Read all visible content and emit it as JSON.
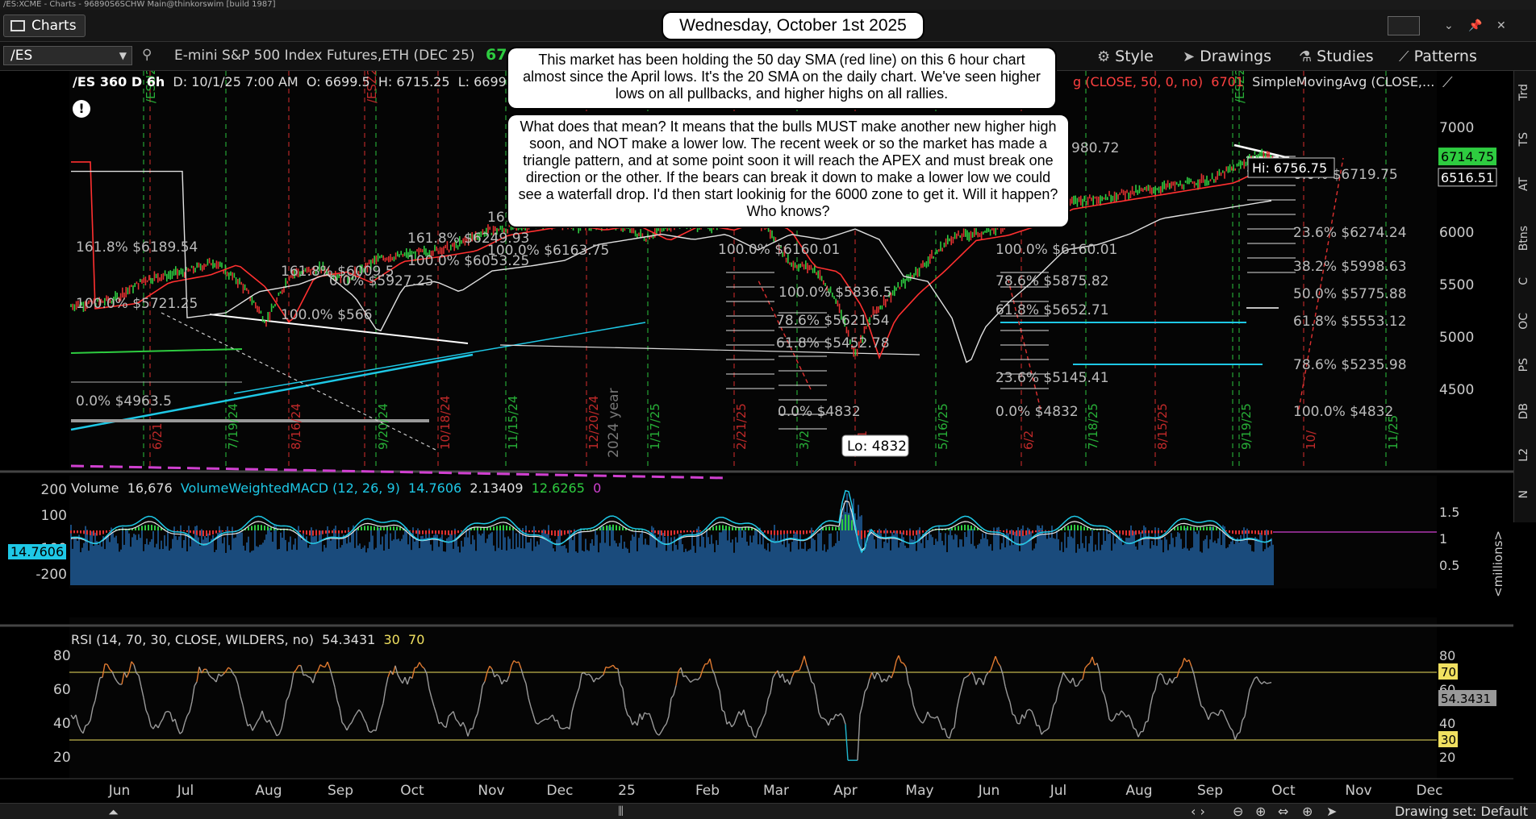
{
  "window": {
    "title": "/ES:XCME - Charts - 96890S6SCHW Main@thinkorswim [build 1987]",
    "tab_label": "Charts"
  },
  "toolbar": {
    "symbol": "/ES",
    "instrument": "E-mini S&P 500 Index Futures,ETH (DEC 25)",
    "last_price_fragment": "67",
    "style_label": "Style",
    "drawings_label": "Drawings",
    "studies_label": "Studies",
    "patterns_label": "Patterns"
  },
  "price_pane": {
    "status": {
      "symbol": "/ES 360 D 6h",
      "date": "D: 10/1/25 7:00 AM",
      "open": "O: 6699.5",
      "high": "H: 6715.25",
      "low": "L: 6699..",
      "sma50": "g (CLOSE, 50, 0, no)",
      "sma50_value": "6701",
      "sma_other": "SimpleMovingAvg (CLOSE,..."
    },
    "y_axis": [
      "7000",
      "6500",
      "6000",
      "5500",
      "5000",
      "4500"
    ],
    "current_price_tag": "6714.75",
    "second_price_tag": "6516.51",
    "hi_label": "Hi: 6756.75",
    "lo_label": "Lo: 4832",
    "year_label": "2024 year",
    "fib_labels": [
      {
        "text": "161.8%  $6189.54"
      },
      {
        "text": "100.0%  $5721.25"
      },
      {
        "text": "0.0%  $4963.5"
      },
      {
        "text": "161.8%  $6009.5"
      },
      {
        "text": "0.0%  $5927.25"
      },
      {
        "text": "100.0%  $566"
      },
      {
        "text": "161.8%  $6249.93"
      },
      {
        "text": "100.0%  $6053.25"
      },
      {
        "text": "161"
      },
      {
        "text": "100.0%  $6163.75"
      },
      {
        "text": "100.0%  $6160.01"
      },
      {
        "text": "100.0%  $5836.5"
      },
      {
        "text": "78.6%  $5621.54"
      },
      {
        "text": "61.8%  $5452.78"
      },
      {
        "text": "0.0%  $4832"
      },
      {
        "text": "100.0%  $6160.01"
      },
      {
        "text": "78.6%  $5875.82"
      },
      {
        "text": "61.8%  $5652.71"
      },
      {
        "text": "23.6%  $5145.41"
      },
      {
        "text": "0.0%  $4832"
      },
      {
        "text": "980.72"
      },
      {
        "text": "0.0%  $6719.75"
      },
      {
        "text": "23.6%  $6274.24"
      },
      {
        "text": "38.2%  $5998.63"
      },
      {
        "text": "50.0%  $5775.88"
      },
      {
        "text": "61.8%  $5553.12"
      },
      {
        "text": "78.6%  $5235.98"
      },
      {
        "text": "100.0%  $4832"
      }
    ],
    "date_markers": [
      "/ESU24",
      "/ESZ24",
      "/ESZ25",
      "6/21",
      "7/19/24",
      "8/16/24",
      "9/20/24",
      "10/18/24",
      "11/15/24",
      "12/20/24",
      "1/17/25",
      "2/21/25",
      "3/2",
      "4/1",
      "5/16/25",
      "6/2",
      "7/18/25",
      "8/15/25",
      "9/19/25",
      "10/",
      "11/25"
    ]
  },
  "volume_pane": {
    "label": "Volume",
    "volume_value": "16,676",
    "study": "VolumeWeightedMACD (12, 26, 9)",
    "v1": "14.7606",
    "v2": "2.13409",
    "v3": "12.6265",
    "v4": "0",
    "left_tag": "14.7606",
    "y_axis_left": [
      "200",
      "100",
      "-100",
      "-200"
    ],
    "y_axis_right": [
      "1.5",
      "1",
      "0.5"
    ],
    "unit": "<millions>"
  },
  "rsi_pane": {
    "label": "RSI (14, 70, 30, CLOSE, WILDERS, no)",
    "value": "54.3431",
    "lower": "30",
    "upper": "70",
    "y_axis": [
      "80",
      "60",
      "40",
      "20"
    ]
  },
  "x_axis": [
    "Jun",
    "Jul",
    "Aug",
    "Sep",
    "Oct",
    "Nov",
    "Dec",
    "25",
    "Feb",
    "Mar",
    "Apr",
    "May",
    "Jun",
    "Jul",
    "Aug",
    "Sep",
    "Oct",
    "Nov",
    "Dec"
  ],
  "side_tabs": [
    "Trd",
    "TS",
    "AT",
    "Btns",
    "C",
    "OC",
    "PS",
    "DB",
    "L2",
    "N"
  ],
  "notes": {
    "date": "Wednesday, October 1st 2025",
    "para1": "This market has been holding the 50 day SMA (red line) on this 6 hour chart almost since the April lows.  It's the 20 SMA on the daily chart.  We've seen higher lows on all pullbacks, and higher highs on all rallies.",
    "para2": "What does that mean?  It means that the bulls MUST make another new higher high soon, and NOT make a lower low.  The recent week or so the market has made a triangle pattern, and at some point soon it will reach the APEX and must break one direction or the other.  If the bears can break it down to make a lower low we could see a waterfall drop.  I'd then start lookinig for the 6000 zone to get it.  Will it happen?  Who knows?"
  },
  "bottom": {
    "drawing_set": "Drawing set: Default"
  },
  "colors": {
    "sma50": "#ff3030",
    "sma200": "#e0e0e0",
    "price_up": "#2ecc40",
    "price_down": "#e03030",
    "trend": "#1ec8e6",
    "rsi_line": "#9a9a9a",
    "rsi_high": "#e07a30",
    "rsi_low": "#20b8d0"
  }
}
